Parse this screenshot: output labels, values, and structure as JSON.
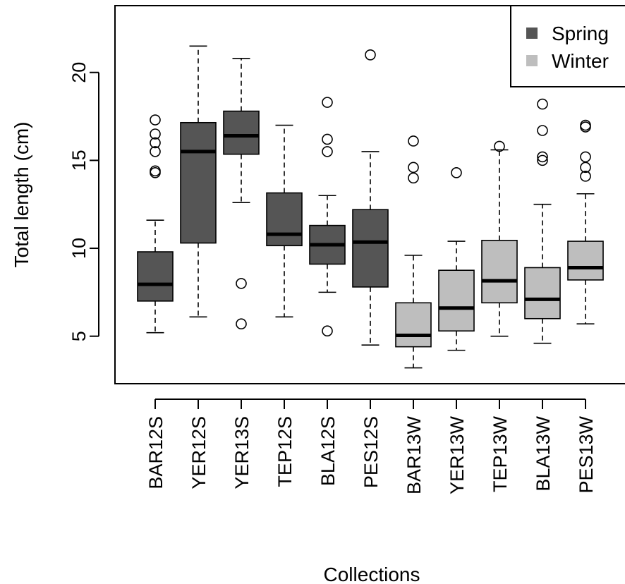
{
  "chart_data": {
    "type": "box",
    "title": "",
    "xlabel": "Collections",
    "ylabel": "Total length (cm)",
    "ylim": [
      2.3,
      23.8
    ],
    "yticks": [
      5,
      10,
      15,
      20
    ],
    "grid": false,
    "legend": {
      "position": "top-right",
      "entries": [
        {
          "label": "Spring",
          "color": "#555555"
        },
        {
          "label": "Winter",
          "color": "#bebebe"
        }
      ]
    },
    "categories": [
      "BAR12S",
      "YER12S",
      "YER13S",
      "TEP12S",
      "BLA12S",
      "PES12S",
      "BAR13W",
      "YER13W",
      "TEP13W",
      "BLA13W",
      "PES13W"
    ],
    "boxes": [
      {
        "group": "Spring",
        "whisker_low": 5.2,
        "q1": 7.0,
        "median": 7.95,
        "q3": 9.8,
        "whisker_high": 11.6,
        "outliers": [
          14.3,
          14.4,
          15.5,
          16.0,
          16.5,
          17.3
        ]
      },
      {
        "group": "Spring",
        "whisker_low": 6.1,
        "q1": 10.3,
        "median": 15.5,
        "q3": 17.15,
        "whisker_high": 21.5,
        "outliers": []
      },
      {
        "group": "Spring",
        "whisker_low": 12.6,
        "q1": 15.35,
        "median": 16.4,
        "q3": 17.8,
        "whisker_high": 20.8,
        "outliers": [
          5.7,
          8.0
        ]
      },
      {
        "group": "Spring",
        "whisker_low": 6.1,
        "q1": 10.15,
        "median": 10.8,
        "q3": 13.15,
        "whisker_high": 17.0,
        "outliers": []
      },
      {
        "group": "Spring",
        "whisker_low": 7.5,
        "q1": 9.1,
        "median": 10.2,
        "q3": 11.3,
        "whisker_high": 13.0,
        "outliers": [
          5.3,
          15.5,
          16.2,
          18.3
        ]
      },
      {
        "group": "Spring",
        "whisker_low": 4.5,
        "q1": 7.8,
        "median": 10.35,
        "q3": 12.2,
        "whisker_high": 15.5,
        "outliers": [
          21.0
        ]
      },
      {
        "group": "Winter",
        "whisker_low": 3.2,
        "q1": 4.4,
        "median": 5.05,
        "q3": 6.9,
        "whisker_high": 9.6,
        "outliers": [
          14.0,
          14.6,
          16.1
        ]
      },
      {
        "group": "Winter",
        "whisker_low": 4.2,
        "q1": 5.3,
        "median": 6.6,
        "q3": 8.75,
        "whisker_high": 10.4,
        "outliers": [
          14.3
        ]
      },
      {
        "group": "Winter",
        "whisker_low": 5.0,
        "q1": 6.9,
        "median": 8.15,
        "q3": 10.45,
        "whisker_high": 15.6,
        "outliers": [
          15.8
        ]
      },
      {
        "group": "Winter",
        "whisker_low": 4.6,
        "q1": 6.0,
        "median": 7.1,
        "q3": 8.9,
        "whisker_high": 12.5,
        "outliers": [
          15.0,
          15.2,
          16.7,
          18.2
        ]
      },
      {
        "group": "Winter",
        "whisker_low": 5.7,
        "q1": 8.2,
        "median": 8.9,
        "q3": 10.4,
        "whisker_high": 13.1,
        "outliers": [
          14.1,
          14.6,
          15.2,
          16.9,
          17.0
        ]
      }
    ]
  }
}
